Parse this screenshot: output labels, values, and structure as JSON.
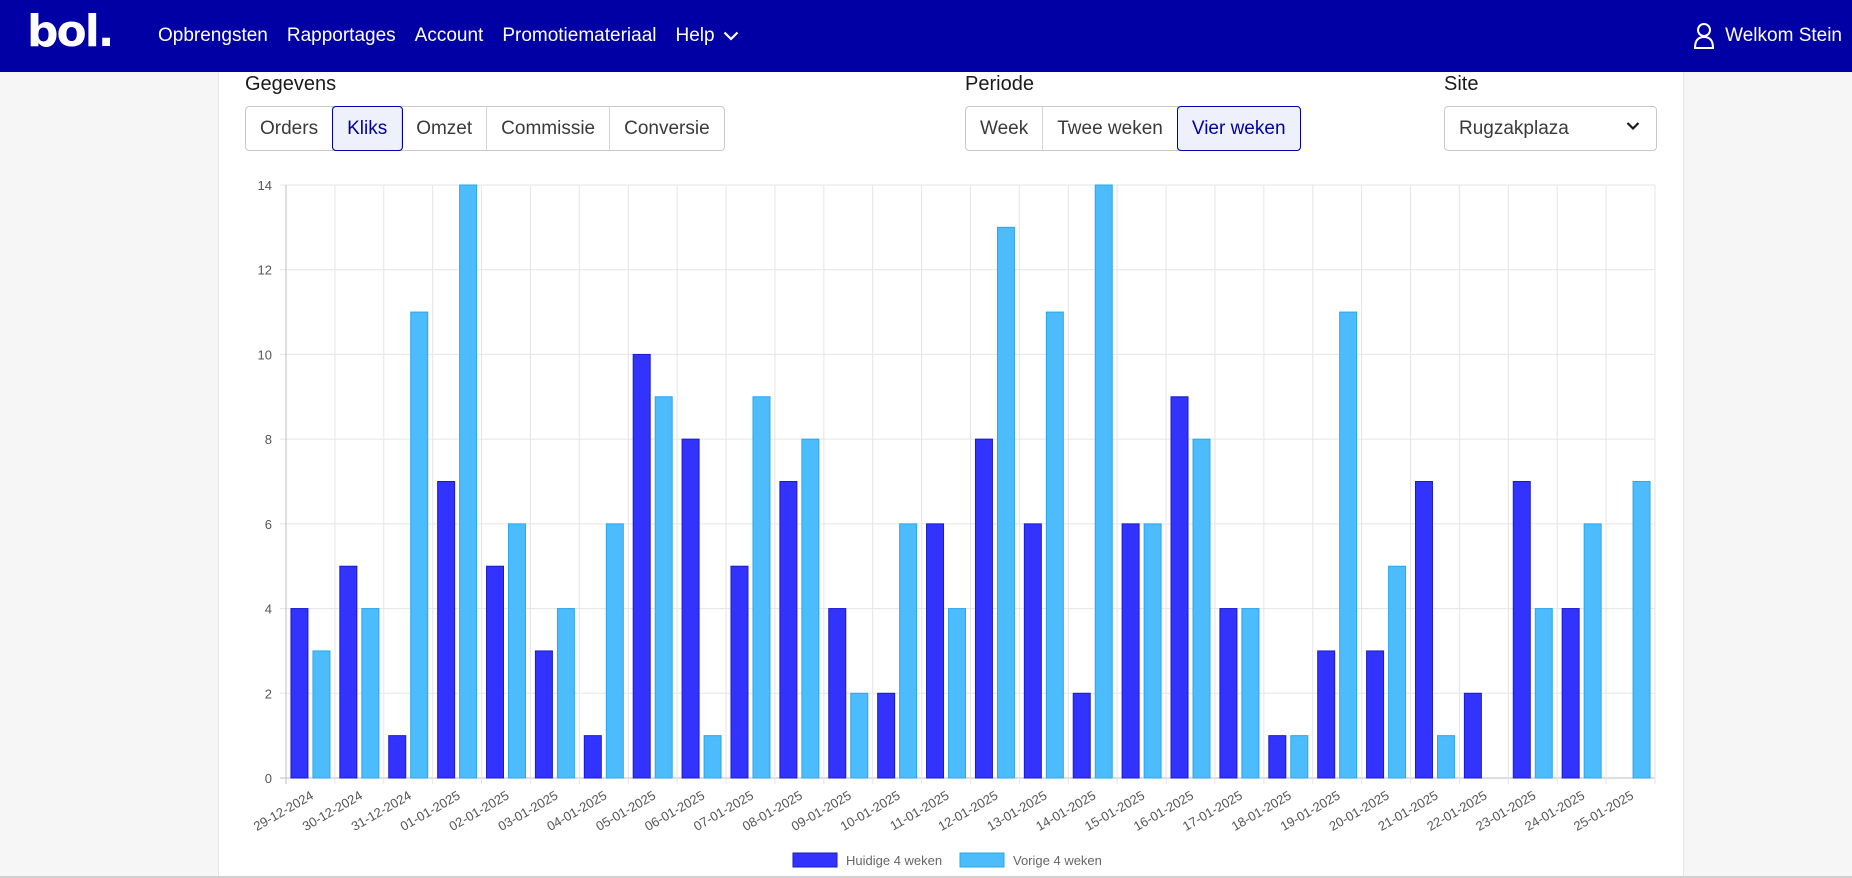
{
  "brand": {
    "logo": "bol."
  },
  "nav": {
    "items": [
      "Opbrengsten",
      "Rapportages",
      "Account",
      "Promotiemateriaal",
      "Help"
    ],
    "user": "Welkom Stein"
  },
  "filters": {
    "data_label": "Gegevens",
    "data_options": [
      "Orders",
      "Kliks",
      "Omzet",
      "Commissie",
      "Conversie"
    ],
    "data_selected": "Kliks",
    "period_label": "Periode",
    "period_options": [
      "Week",
      "Twee weken",
      "Vier weken"
    ],
    "period_selected": "Vier weken",
    "site_label": "Site",
    "site_selected": "Rugzakplaza"
  },
  "colors": {
    "nav_bg": "#0000a4",
    "series_current": "#3333ff",
    "series_previous": "#4dbcfc"
  },
  "chart_data": {
    "type": "bar",
    "categories": [
      "29-12-2024",
      "30-12-2024",
      "31-12-2024",
      "01-01-2025",
      "02-01-2025",
      "03-01-2025",
      "04-01-2025",
      "05-01-2025",
      "06-01-2025",
      "07-01-2025",
      "08-01-2025",
      "09-01-2025",
      "10-01-2025",
      "11-01-2025",
      "12-01-2025",
      "13-01-2025",
      "14-01-2025",
      "15-01-2025",
      "16-01-2025",
      "17-01-2025",
      "18-01-2025",
      "19-01-2025",
      "20-01-2025",
      "21-01-2025",
      "22-01-2025",
      "23-01-2025",
      "24-01-2025",
      "25-01-2025"
    ],
    "series": [
      {
        "name": "Huidige 4 weken",
        "values": [
          4,
          5,
          1,
          7,
          5,
          3,
          1,
          10,
          8,
          5,
          7,
          4,
          2,
          6,
          8,
          6,
          2,
          6,
          9,
          4,
          1,
          3,
          3,
          7,
          2,
          7,
          4,
          0
        ]
      },
      {
        "name": "Vorige 4 weken",
        "values": [
          3,
          4,
          11,
          14,
          6,
          4,
          6,
          9,
          1,
          9,
          8,
          2,
          6,
          4,
          13,
          11,
          14,
          6,
          8,
          4,
          1,
          11,
          5,
          1,
          0,
          4,
          6,
          7
        ]
      }
    ],
    "yticks": [
      "0",
      "2",
      "4",
      "6",
      "8",
      "10",
      "12",
      "14"
    ],
    "ylim": [
      0,
      14
    ],
    "grid": true,
    "legend": "bottom"
  }
}
